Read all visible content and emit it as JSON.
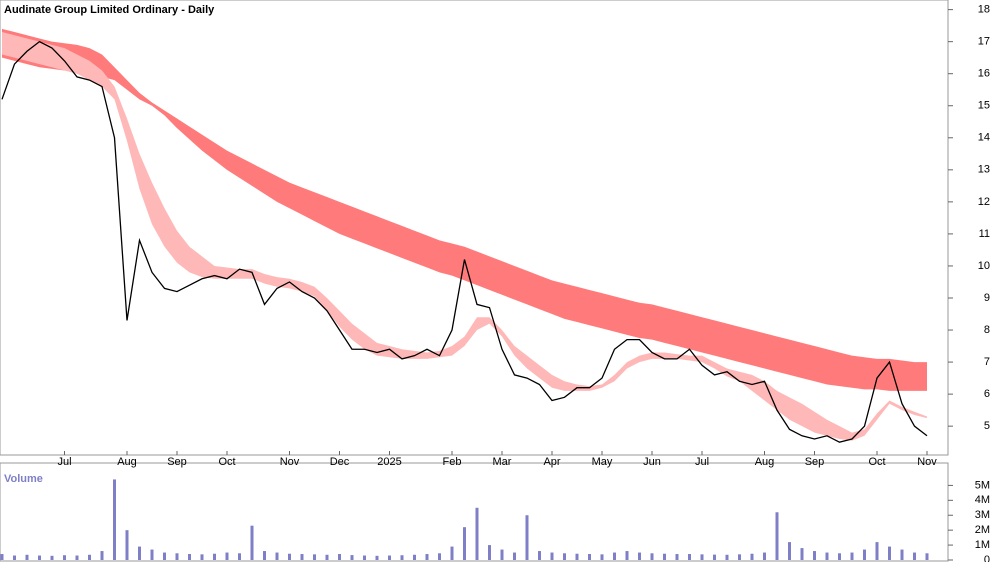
{
  "chart_data": [
    {
      "type": "line",
      "title": "Audinate Group Limited Ordinary - Daily",
      "categories": [
        null,
        null,
        null,
        null,
        null,
        "Jul",
        null,
        null,
        null,
        null,
        "Aug",
        null,
        null,
        null,
        "Sep",
        null,
        null,
        null,
        "Oct",
        null,
        null,
        null,
        null,
        "Nov",
        null,
        null,
        null,
        "Dec",
        null,
        null,
        null,
        "2025",
        null,
        null,
        null,
        null,
        "Feb",
        null,
        null,
        null,
        "Mar",
        null,
        null,
        null,
        "Apr",
        null,
        null,
        null,
        "May",
        null,
        null,
        null,
        "Jun",
        null,
        null,
        null,
        "Jul",
        null,
        null,
        null,
        null,
        "Aug",
        null,
        null,
        null,
        "Sep",
        null,
        null,
        null,
        null,
        "Oct",
        null,
        null,
        null,
        "Nov"
      ],
      "values": [
        15.2,
        16.3,
        16.7,
        17.0,
        16.8,
        16.4,
        15.9,
        15.8,
        15.6,
        14.0,
        8.3,
        10.8,
        9.8,
        9.3,
        9.2,
        9.4,
        9.6,
        9.7,
        9.6,
        9.9,
        9.8,
        8.8,
        9.3,
        9.5,
        9.2,
        9.0,
        8.6,
        8.0,
        7.4,
        7.4,
        7.3,
        7.4,
        7.1,
        7.2,
        7.4,
        7.2,
        8.0,
        10.2,
        8.8,
        8.7,
        7.4,
        6.6,
        6.5,
        6.3,
        5.8,
        5.9,
        6.2,
        6.2,
        6.5,
        7.4,
        7.7,
        7.7,
        7.3,
        7.1,
        7.1,
        7.4,
        6.9,
        6.6,
        6.7,
        6.4,
        6.3,
        6.4,
        5.5,
        4.9,
        4.7,
        4.6,
        4.7,
        4.5,
        4.6,
        5.0,
        6.5,
        7.0,
        5.7,
        5.0,
        4.7
      ],
      "color": "#000000",
      "bands": [
        {
          "color": "#ff7b7b",
          "upper": [
            17.4,
            17.3,
            17.2,
            17.1,
            17.0,
            16.95,
            16.9,
            16.8,
            16.6,
            16.2,
            15.8,
            15.4,
            15.1,
            14.85,
            14.6,
            14.35,
            14.1,
            13.85,
            13.6,
            13.4,
            13.2,
            13.0,
            12.8,
            12.6,
            12.45,
            12.3,
            12.15,
            12.0,
            11.85,
            11.7,
            11.55,
            11.4,
            11.25,
            11.1,
            10.95,
            10.8,
            10.7,
            10.6,
            10.45,
            10.3,
            10.15,
            10.0,
            9.85,
            9.7,
            9.55,
            9.45,
            9.35,
            9.25,
            9.15,
            9.05,
            8.95,
            8.85,
            8.8,
            8.7,
            8.6,
            8.5,
            8.4,
            8.3,
            8.2,
            8.1,
            8.0,
            7.9,
            7.8,
            7.7,
            7.6,
            7.5,
            7.4,
            7.3,
            7.2,
            7.15,
            7.1,
            7.1,
            7.05,
            7.0,
            7.0
          ],
          "lower": [
            16.5,
            16.4,
            16.3,
            16.2,
            16.15,
            16.1,
            16.05,
            16.0,
            15.9,
            15.8,
            15.5,
            15.2,
            15.0,
            14.7,
            14.3,
            13.95,
            13.6,
            13.3,
            13.0,
            12.75,
            12.5,
            12.25,
            12.0,
            11.8,
            11.6,
            11.4,
            11.2,
            11.0,
            10.85,
            10.7,
            10.55,
            10.4,
            10.25,
            10.1,
            9.95,
            9.8,
            9.7,
            9.55,
            9.4,
            9.25,
            9.1,
            8.95,
            8.8,
            8.65,
            8.5,
            8.35,
            8.25,
            8.15,
            8.05,
            7.95,
            7.85,
            7.75,
            7.7,
            7.6,
            7.5,
            7.4,
            7.3,
            7.2,
            7.1,
            7.0,
            6.9,
            6.8,
            6.7,
            6.6,
            6.5,
            6.4,
            6.3,
            6.25,
            6.2,
            6.15,
            6.15,
            6.1,
            6.1,
            6.1,
            6.1
          ]
        },
        {
          "color": "#ffb8b8",
          "upper": [
            17.3,
            17.2,
            17.1,
            17.0,
            16.9,
            16.8,
            16.6,
            16.4,
            16.1,
            15.6,
            14.6,
            13.5,
            12.6,
            11.8,
            11.1,
            10.6,
            10.3,
            10.0,
            9.95,
            9.9,
            9.9,
            9.75,
            9.65,
            9.6,
            9.5,
            9.35,
            9.0,
            8.6,
            8.2,
            7.9,
            7.6,
            7.5,
            7.4,
            7.35,
            7.3,
            7.35,
            7.5,
            7.8,
            8.4,
            8.4,
            8.0,
            7.5,
            7.2,
            6.9,
            6.6,
            6.4,
            6.3,
            6.25,
            6.3,
            6.6,
            7.0,
            7.2,
            7.3,
            7.3,
            7.25,
            7.2,
            7.2,
            7.0,
            6.8,
            6.7,
            6.6,
            6.4,
            6.1,
            5.9,
            5.7,
            5.45,
            5.2,
            5.0,
            4.8,
            4.9,
            5.4,
            5.8,
            5.6,
            5.45,
            5.3
          ],
          "lower": [
            16.6,
            16.5,
            16.4,
            16.3,
            16.2,
            16.1,
            16.0,
            15.8,
            15.6,
            15.2,
            13.9,
            12.4,
            11.3,
            10.6,
            10.1,
            9.8,
            9.65,
            9.6,
            9.6,
            9.6,
            9.6,
            9.45,
            9.35,
            9.3,
            9.2,
            9.05,
            8.6,
            8.1,
            7.7,
            7.4,
            7.2,
            7.15,
            7.1,
            7.1,
            7.1,
            7.15,
            7.2,
            7.5,
            8.0,
            8.2,
            7.8,
            7.2,
            6.8,
            6.5,
            6.2,
            6.1,
            6.1,
            6.1,
            6.2,
            6.4,
            6.8,
            7.0,
            7.1,
            7.1,
            7.1,
            7.05,
            7.0,
            6.8,
            6.55,
            6.4,
            6.1,
            5.8,
            5.5,
            5.2,
            5.0,
            4.8,
            4.7,
            4.6,
            4.55,
            4.7,
            5.2,
            5.7,
            5.5,
            5.35,
            5.25
          ]
        }
      ],
      "ylim": [
        4.1,
        18.3
      ],
      "yticks": [
        5,
        6,
        7,
        8,
        9,
        10,
        11,
        12,
        13,
        14,
        15,
        16,
        17,
        18
      ]
    },
    {
      "type": "bar",
      "title": "Volume",
      "values": [
        400000,
        300000,
        350000,
        300000,
        280000,
        320000,
        300000,
        350000,
        600000,
        5400000,
        2000000,
        900000,
        700000,
        500000,
        450000,
        400000,
        380000,
        420000,
        500000,
        450000,
        2300000,
        600000,
        500000,
        420000,
        400000,
        380000,
        350000,
        400000,
        330000,
        300000,
        280000,
        300000,
        320000,
        350000,
        400000,
        450000,
        900000,
        2200000,
        3500000,
        1000000,
        700000,
        500000,
        3000000,
        600000,
        500000,
        450000,
        420000,
        400000,
        380000,
        500000,
        600000,
        500000,
        450000,
        420000,
        400000,
        400000,
        380000,
        360000,
        350000,
        380000,
        420000,
        500000,
        3200000,
        1200000,
        800000,
        600000,
        500000,
        450000,
        500000,
        700000,
        1200000,
        900000,
        700000,
        500000,
        450000
      ],
      "color": "#7f7fc8",
      "ylim": [
        0,
        6300000
      ],
      "yticks": [
        0,
        {
          "value": 1000000,
          "label": "1M"
        },
        {
          "value": 2000000,
          "label": "2M"
        },
        {
          "value": 3000000,
          "label": "3M"
        },
        {
          "value": 4000000,
          "label": "4M"
        },
        {
          "value": 5000000,
          "label": "5M"
        }
      ]
    }
  ]
}
